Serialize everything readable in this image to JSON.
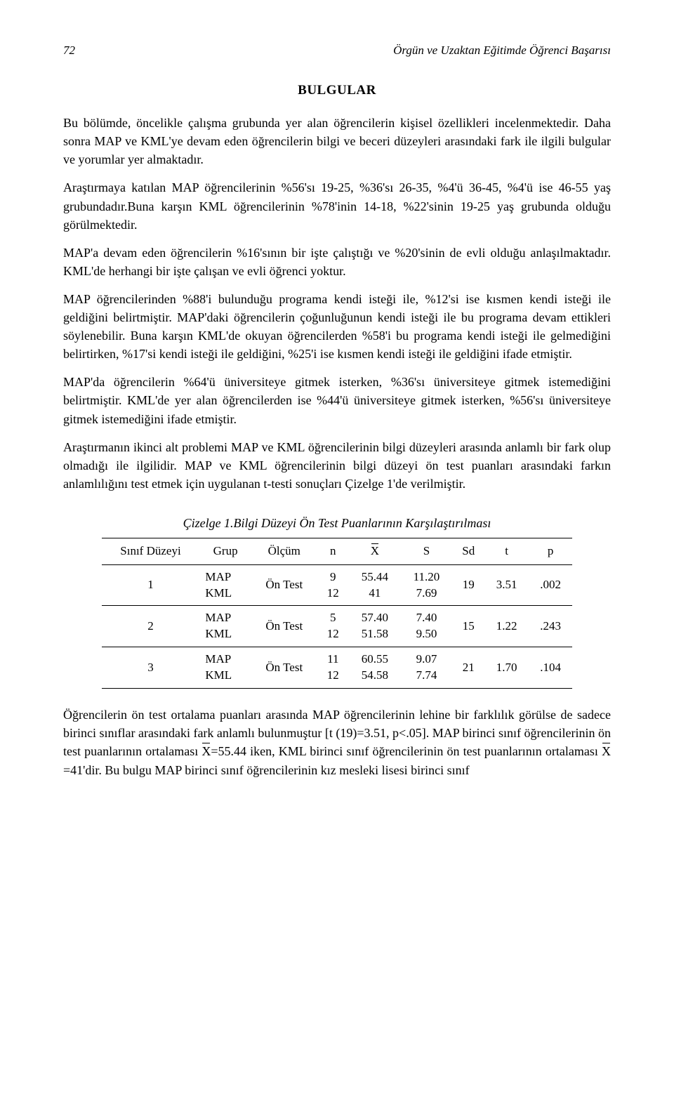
{
  "header": {
    "page_number": "72",
    "running_title": "Örgün ve Uzaktan Eğitimde Öğrenci Başarısı"
  },
  "section_heading": "BULGULAR",
  "paragraphs": {
    "p1": "Bu bölümde, öncelikle çalışma grubunda yer alan öğrencilerin kişisel özellikleri incelenmektedir. Daha sonra MAP ve KML'ye devam eden öğrencilerin bilgi ve beceri düzeyleri arasındaki fark ile ilgili bulgular ve yorumlar yer almaktadır.",
    "p2": "Araştırmaya katılan MAP öğrencilerinin %56'sı 19-25, %36'sı 26-35, %4'ü 36-45, %4'ü ise 46-55 yaş grubundadır.Buna karşın KML öğrencilerinin %78'inin 14-18, %22'sinin 19-25 yaş grubunda olduğu görülmektedir.",
    "p3": "MAP'a devam eden öğrencilerin %16'sının bir işte çalıştığı ve %20'sinin de evli olduğu anlaşılmaktadır. KML'de herhangi bir işte çalışan ve evli öğrenci yoktur.",
    "p4": "MAP öğrencilerinden %88'i bulunduğu programa kendi isteği ile, %12'si ise kısmen kendi isteği ile geldiğini belirtmiştir. MAP'daki öğrencilerin çoğunluğunun kendi isteği ile bu programa devam ettikleri söylenebilir. Buna karşın KML'de okuyan öğrencilerden %58'i bu programa kendi isteği ile gelmediğini belirtirken, %17'si kendi isteği ile geldiğini, %25'i ise kısmen kendi isteği ile geldiğini ifade etmiştir.",
    "p5": "MAP'da öğrencilerin %64'ü üniversiteye gitmek isterken, %36'sı üniversiteye gitmek istemediğini belirtmiştir. KML'de yer alan öğrencilerden ise %44'ü üniversiteye gitmek isterken, %56'sı üniversiteye gitmek istemediğini ifade etmiştir.",
    "p6": "Araştırmanın ikinci alt problemi MAP ve KML öğrencilerinin bilgi düzeyleri arasında anlamlı bir fark olup olmadığı ile ilgilidir. MAP ve KML öğrencilerinin bilgi düzeyi ön test puanları arasındaki farkın anlamlılığını test etmek için uygulanan t-testi sonuçları Çizelge 1'de verilmiştir.",
    "p7a": "Öğrencilerin ön test ortalama puanları arasında MAP öğrencilerinin lehine bir farklılık görülse de sadece birinci  sınıflar arasındaki fark anlamlı bulunmuştur [t (19)=3.51, p<.05]. MAP birinci sınıf öğrencilerinin ön test puanlarının ortalaması ",
    "p7b": "=55.44 iken, KML birinci sınıf öğrencilerinin ön test puanlarının ortalaması ",
    "p7c": "=41'dir. Bu bulgu MAP birinci sınıf öğrencilerinin kız mesleki lisesi birinci sınıf"
  },
  "table": {
    "caption": "Çizelge 1.Bilgi Düzeyi Ön Test Puanlarının Karşılaştırılması",
    "columns": {
      "c0": "Sınıf Düzeyi",
      "c1": "Grup",
      "c2": "Ölçüm",
      "c3": "n",
      "c4": "X",
      "c5": "S",
      "c6": "Sd",
      "c7": "t",
      "c8": "p"
    },
    "rows": {
      "r1": {
        "level": "1",
        "groups": "MAP\nKML",
        "measure": "Ön Test",
        "n": "9\n12",
        "mean": "55.44\n41",
        "s": "11.20\n7.69",
        "sd": "19",
        "t": "3.51",
        "p": ".002"
      },
      "r2": {
        "level": "2",
        "groups": "MAP\nKML",
        "measure": "Ön Test",
        "n": "5\n12",
        "mean": "57.40\n51.58",
        "s": "7.40\n9.50",
        "sd": "15",
        "t": "1.22",
        "p": ".243"
      },
      "r3": {
        "level": "3",
        "groups": "MAP\nKML",
        "measure": "Ön Test",
        "n": "11\n12",
        "mean": "60.55\n54.58",
        "s": "9.07\n7.74",
        "sd": "21",
        "t": "1.70",
        "p": ".104"
      }
    }
  }
}
